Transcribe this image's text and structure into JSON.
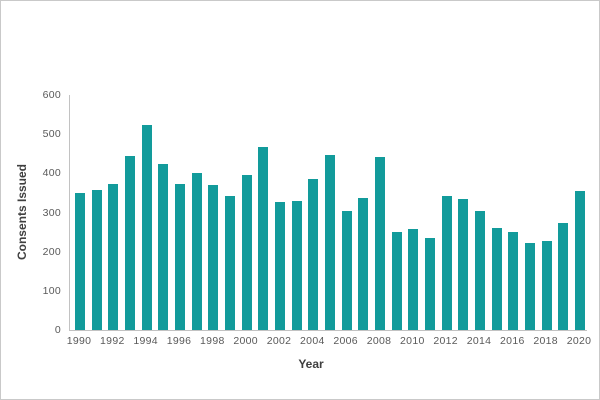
{
  "chart_data": {
    "type": "bar",
    "title": "",
    "xlabel": "Year",
    "ylabel": "Consents Issued",
    "x": [
      1990,
      1991,
      1992,
      1993,
      1994,
      1995,
      1996,
      1997,
      1998,
      1999,
      2000,
      2001,
      2002,
      2003,
      2004,
      2005,
      2006,
      2007,
      2008,
      2009,
      2010,
      2011,
      2012,
      2013,
      2014,
      2015,
      2016,
      2017,
      2018,
      2019,
      2020
    ],
    "values": [
      349,
      358,
      372,
      443,
      523,
      423,
      372,
      402,
      370,
      343,
      397,
      467,
      326,
      330,
      386,
      448,
      304,
      338,
      441,
      250,
      259,
      236,
      341,
      335,
      305,
      261,
      249,
      223,
      227,
      274,
      356
    ],
    "ylim": [
      0,
      600
    ],
    "yticks": [
      0,
      100,
      200,
      300,
      400,
      500,
      600
    ],
    "xtick_labels": [
      "1990",
      "1992",
      "1994",
      "1996",
      "1998",
      "2000",
      "2002",
      "2004",
      "2006",
      "2008",
      "2010",
      "2012",
      "2014",
      "2016",
      "2018",
      "2020"
    ],
    "xtick_step": 2,
    "grid": false,
    "legend": false,
    "colors": {
      "bar": "#129b9b",
      "axis_line": "#c2c2c2",
      "tick_label": "#595959",
      "axis_title": "#3f3f3f",
      "frame_border": "#c9c9c9",
      "background": "#ffffff"
    }
  }
}
